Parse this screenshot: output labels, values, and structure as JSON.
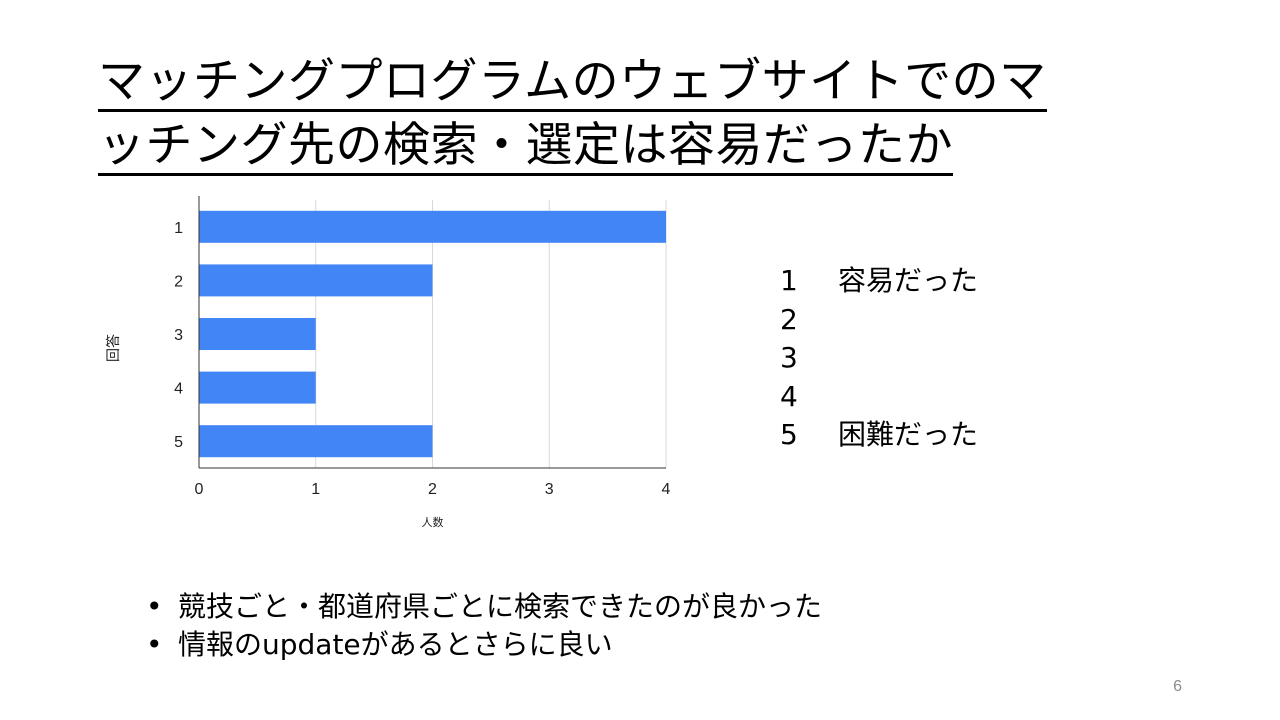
{
  "slide": {
    "title_lines": [
      "マッチングプログラムのウェブサイトでのマ",
      "ッチング先の検索・選定は容易だったか"
    ],
    "page_number": "6"
  },
  "chart_data": {
    "type": "bar",
    "orientation": "horizontal",
    "categories": [
      "1",
      "2",
      "3",
      "4",
      "5"
    ],
    "values": [
      4,
      2,
      1,
      1,
      2
    ],
    "xlabel": "人数",
    "ylabel": "回答",
    "xlim": [
      0,
      4
    ],
    "xticks": [
      "0",
      "1",
      "2",
      "3",
      "4"
    ],
    "grid": true,
    "bar_color": "#4285f4"
  },
  "legend": {
    "items": [
      {
        "num": "1",
        "label": "容易だった"
      },
      {
        "num": "2",
        "label": ""
      },
      {
        "num": "3",
        "label": ""
      },
      {
        "num": "4",
        "label": ""
      },
      {
        "num": "5",
        "label": "困難だった"
      }
    ]
  },
  "notes": {
    "bullet": "•",
    "items": [
      "競技ごと・都道府県ごとに検索できたのが良かった",
      "情報のupdateがあるとさらに良い"
    ]
  }
}
